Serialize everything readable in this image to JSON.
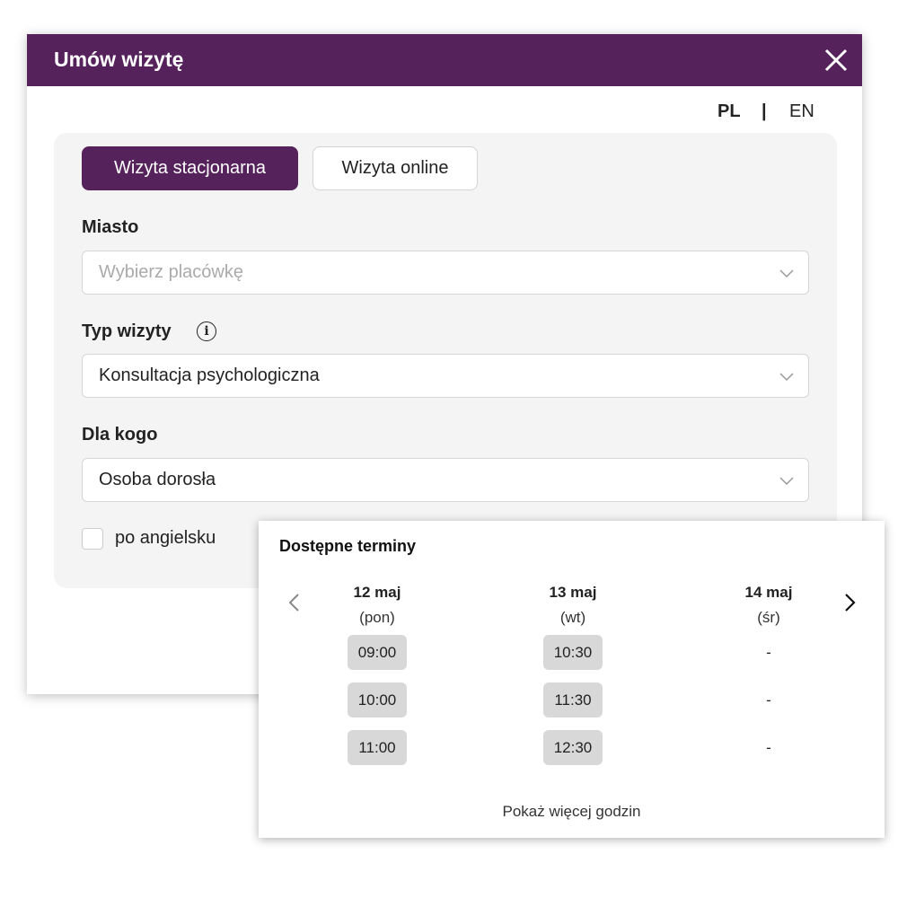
{
  "modal": {
    "title": "Umów wizytę",
    "close_icon": "close-icon",
    "header_color": "#56225c",
    "lang": {
      "pl": "PL",
      "separator": "|",
      "en": "EN"
    },
    "tabs": [
      {
        "label": "Wizyta stacjonarna",
        "active": true
      },
      {
        "label": "Wizyta online",
        "active": false
      }
    ],
    "city": {
      "label": "Miasto",
      "placeholder": "Wybierz placówkę",
      "value": ""
    },
    "visit_type": {
      "label": "Typ wizyty",
      "value": "Konsultacja psychologiczna"
    },
    "for_whom": {
      "label": "Dla kogo",
      "value": "Osoba dorosła"
    },
    "english": {
      "label": "po angielsku",
      "checked": false
    }
  },
  "slots": {
    "title": "Dostępne terminy",
    "days": [
      {
        "date": "12 maj",
        "weekday": "(pon)",
        "times": [
          "09:00",
          "10:00",
          "11:00"
        ]
      },
      {
        "date": "13 maj",
        "weekday": "(wt)",
        "times": [
          "10:30",
          "11:30",
          "12:30"
        ]
      },
      {
        "date": "14 maj",
        "weekday": "(śr)",
        "times": [
          "-",
          "-",
          "-"
        ]
      }
    ],
    "more": "Pokaż więcej godzin"
  }
}
